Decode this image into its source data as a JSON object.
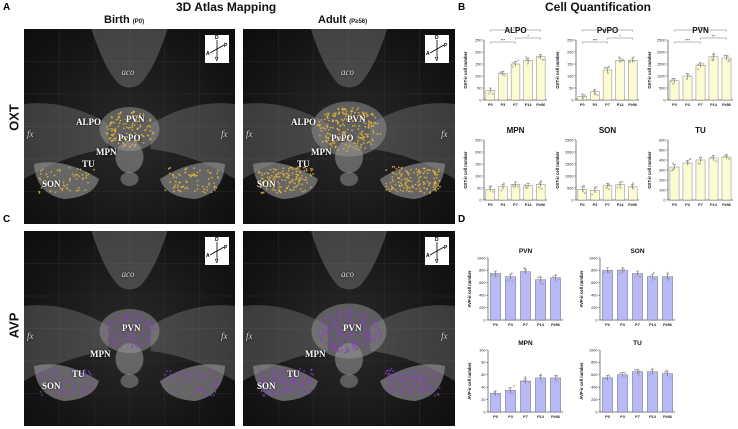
{
  "panels": {
    "a": {
      "letter": "A",
      "title": "3D Atlas Mapping",
      "col_birth": "Birth",
      "col_birth_sub": "(P0)",
      "col_adult": "Adult",
      "col_adult_sub": "(P≥56)",
      "row_label": "OXT"
    },
    "b": {
      "letter": "B",
      "title": "Cell Quantification"
    },
    "c": {
      "letter": "C",
      "row_label": "AVP"
    },
    "d": {
      "letter": "D"
    }
  },
  "regions": {
    "aco": "aco",
    "fx": "fx",
    "pvn": "PVN",
    "alpo": "ALPO",
    "pvpo": "PvPO",
    "mpn": "MPN",
    "tu": "TU",
    "son": "SON"
  },
  "compass": {
    "d": "D",
    "v": "V",
    "a": "A",
    "p": "P"
  },
  "colors": {
    "oxt_bar": "#fdfbd4",
    "oxt_dot": "#e3b43a",
    "avp_bar": "#b9b9f6",
    "avp_dot": "#8a3fc4",
    "brain": "#9a9a9a"
  },
  "chart_data": [
    {
      "type": "bar",
      "group": "B",
      "title": "ALPO",
      "ylabel": "OXT-ir cell number",
      "categories": [
        "P0",
        "P3",
        "P7",
        "P14",
        "P≥56"
      ],
      "values": [
        40,
        110,
        150,
        165,
        180
      ],
      "yticks": [
        "0",
        "50",
        "100",
        "150",
        "200",
        "250"
      ],
      "ylim": [
        0,
        250
      ],
      "significance": [
        "***",
        "*",
        "***"
      ]
    },
    {
      "type": "bar",
      "group": "B",
      "title": "PvPO",
      "ylabel": "OXT-ir cell number",
      "categories": [
        "P0",
        "P3",
        "P7",
        "P14",
        "P≥56"
      ],
      "values": [
        15,
        35,
        125,
        165,
        165
      ],
      "yticks": [
        "0",
        "50",
        "100",
        "150",
        "200",
        "250"
      ],
      "ylim": [
        0,
        250
      ],
      "significance": [
        "***",
        "*",
        "***"
      ]
    },
    {
      "type": "bar",
      "group": "B",
      "title": "PVN",
      "ylabel": "OXT-ir cell number",
      "categories": [
        "P0",
        "P3",
        "P7",
        "P14",
        "P≥56"
      ],
      "values": [
        800,
        1000,
        1450,
        1800,
        1750
      ],
      "yticks": [
        "0",
        "500",
        "1000",
        "1500",
        "2000",
        "2500"
      ],
      "ylim": [
        0,
        2500
      ],
      "significance": [
        "***",
        "**",
        "***"
      ]
    },
    {
      "type": "bar",
      "group": "B",
      "title": "MPN",
      "ylabel": "OXT-ir cell number",
      "categories": [
        "P0",
        "P3",
        "P7",
        "P14",
        "P≥56"
      ],
      "values": [
        45,
        55,
        65,
        60,
        65
      ],
      "yticks": [
        "0",
        "50",
        "100",
        "150",
        "200",
        "250"
      ],
      "ylim": [
        0,
        250
      ],
      "significance": []
    },
    {
      "type": "bar",
      "group": "B",
      "title": "SON",
      "ylabel": "OXT-ir cell number",
      "categories": [
        "P0",
        "P3",
        "P7",
        "P14",
        "P≥56"
      ],
      "values": [
        450,
        400,
        600,
        650,
        550
      ],
      "yticks": [
        "0",
        "500",
        "1000",
        "1500",
        "2000",
        "2500"
      ],
      "ylim": [
        0,
        2500
      ],
      "significance": []
    },
    {
      "type": "bar",
      "group": "B",
      "title": "TU",
      "ylabel": "OXT-ir cell number",
      "categories": [
        "P0",
        "P3",
        "P7",
        "P14",
        "P≥56"
      ],
      "values": [
        330,
        370,
        400,
        420,
        430
      ],
      "yticks": [
        "0",
        "100",
        "200",
        "300",
        "400",
        "500",
        "600"
      ],
      "ylim": [
        0,
        600
      ],
      "significance": []
    },
    {
      "type": "bar",
      "group": "D",
      "title": "PVN",
      "ylabel": "AVP-ir cell number",
      "categories": [
        "P0",
        "P3",
        "P7",
        "P14",
        "P≥56"
      ],
      "values": [
        750,
        700,
        780,
        650,
        680
      ],
      "yticks": [
        "0",
        "200",
        "400",
        "600",
        "800",
        "1000"
      ],
      "ylim": [
        0,
        1000
      ],
      "significance": []
    },
    {
      "type": "bar",
      "group": "D",
      "title": "SON",
      "ylabel": "AVP-ir cell number",
      "categories": [
        "P0",
        "P3",
        "P7",
        "P14",
        "P≥56"
      ],
      "values": [
        800,
        800,
        750,
        700,
        700
      ],
      "yticks": [
        "0",
        "200",
        "400",
        "600",
        "800",
        "1000"
      ],
      "ylim": [
        0,
        1000
      ],
      "significance": []
    },
    {
      "type": "bar",
      "group": "D",
      "title": "MPN",
      "ylabel": "AVP-ir cell number",
      "categories": [
        "P0",
        "P3",
        "P7",
        "P14",
        "P≥56"
      ],
      "values": [
        30,
        35,
        50,
        55,
        55
      ],
      "yticks": [
        "0",
        "20",
        "40",
        "60",
        "80",
        "100"
      ],
      "ylim": [
        0,
        100
      ],
      "significance": []
    },
    {
      "type": "bar",
      "group": "D",
      "title": "TU",
      "ylabel": "AVP-ir cell number",
      "categories": [
        "P0",
        "P3",
        "P7",
        "P14",
        "P≥56"
      ],
      "values": [
        550,
        600,
        650,
        650,
        620
      ],
      "yticks": [
        "0",
        "200",
        "400",
        "600",
        "800",
        "1000"
      ],
      "ylim": [
        0,
        1000
      ],
      "significance": []
    }
  ]
}
